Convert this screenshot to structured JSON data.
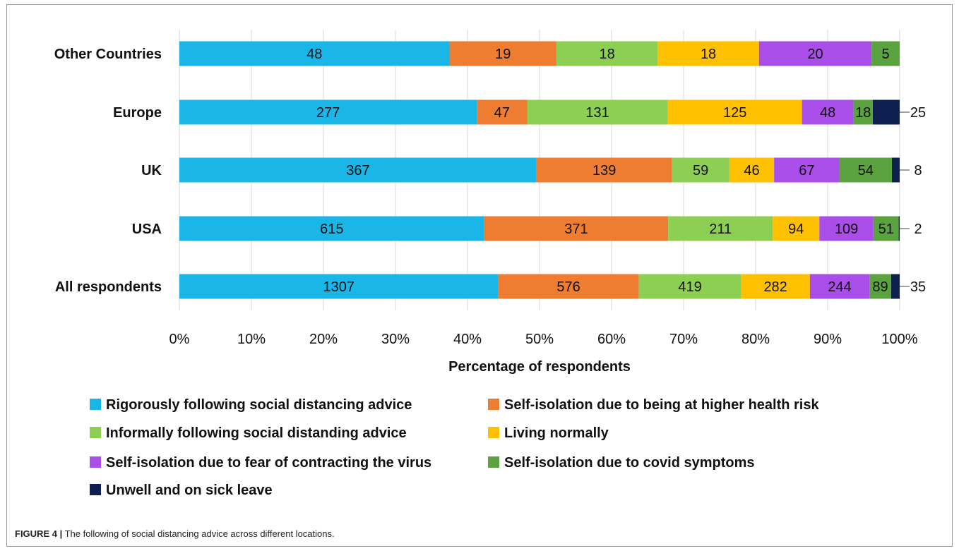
{
  "caption": {
    "label": "FIGURE 4 |",
    "text": " The following of social distancing advice across different locations."
  },
  "chart_data": {
    "type": "bar",
    "orientation": "horizontal",
    "stacked": "percent",
    "categories": [
      "Other Countries",
      "Europe",
      "UK",
      "USA",
      "All respondents"
    ],
    "series": [
      {
        "name": "Rigorously following social distancing advice",
        "color": "#1ab6e8",
        "values": [
          48,
          277,
          367,
          615,
          1307
        ]
      },
      {
        "name": "Self-isolation due to being at higher health risk",
        "color": "#ee7d31",
        "values": [
          19,
          47,
          139,
          371,
          576
        ]
      },
      {
        "name": "Informally following social distanding advice",
        "color": "#8ccf52",
        "values": [
          18,
          131,
          59,
          211,
          419
        ]
      },
      {
        "name": "Living normally",
        "color": "#ffc000",
        "values": [
          18,
          125,
          46,
          94,
          282
        ]
      },
      {
        "name": "Self-isolation due to fear of contracting the virus",
        "color": "#a94ee8",
        "values": [
          20,
          48,
          67,
          109,
          244
        ]
      },
      {
        "name": "Self-isolation due to covid symptoms",
        "color": "#5ba33f",
        "values": [
          5,
          18,
          54,
          51,
          89
        ]
      },
      {
        "name": "Unwell and on sick leave",
        "color": "#0d2050",
        "values": [
          0,
          25,
          8,
          2,
          35
        ]
      }
    ],
    "xlabel": "Percentage of respondents",
    "ylabel": "",
    "xlim": [
      0,
      100
    ],
    "xticks": [
      "0%",
      "10%",
      "20%",
      "30%",
      "40%",
      "50%",
      "60%",
      "70%",
      "80%",
      "90%",
      "100%"
    ],
    "grid": "vertical",
    "legend": "bottom"
  }
}
